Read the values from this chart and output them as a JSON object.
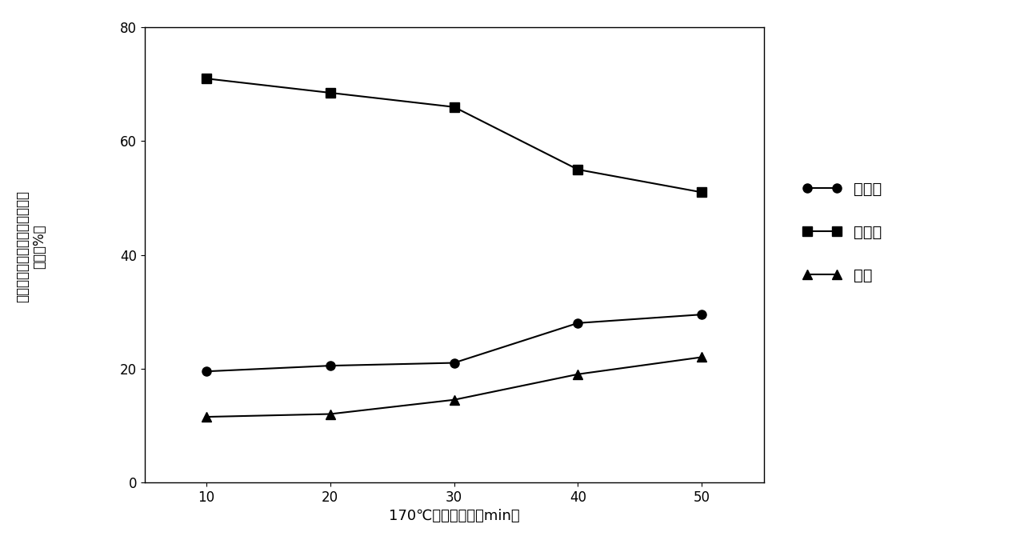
{
  "x": [
    10,
    20,
    30,
    40,
    50
  ],
  "supernatant": [
    19.5,
    20.5,
    21.0,
    28.0,
    29.5
  ],
  "solid_residue": [
    71.0,
    68.5,
    66.0,
    55.0,
    51.0
  ],
  "loss": [
    11.5,
    12.0,
    14.5,
    19.0,
    22.0
  ],
  "xlabel": "170℃，反应时间（min）",
  "ylabel_line1": "各组分木聚糖占反应前木聚糖的",
  "ylabel_line2": "比例（%）",
  "legend_supernatant": "上清液",
  "legend_solid": "固体渣",
  "legend_loss": "损失",
  "ylim": [
    0,
    80
  ],
  "yticks": [
    0,
    20,
    40,
    60,
    80
  ],
  "xticks": [
    10,
    20,
    30,
    40,
    50
  ],
  "line_color": "#000000",
  "marker_circle": "o",
  "marker_square": "s",
  "marker_triangle": "^",
  "markersize": 8,
  "linewidth": 1.5,
  "xlabel_fontsize": 13,
  "ylabel_fontsize": 12,
  "tick_fontsize": 12,
  "legend_fontsize": 14
}
